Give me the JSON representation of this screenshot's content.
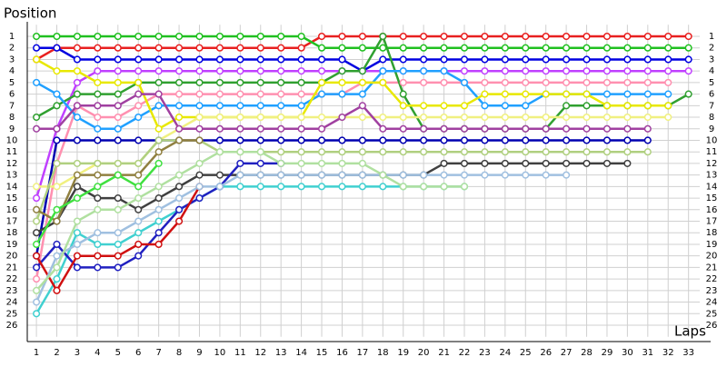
{
  "chart_data": {
    "type": "line",
    "y_label": "Position",
    "x_label": "Laps",
    "x": [
      1,
      2,
      3,
      4,
      5,
      6,
      7,
      8,
      9,
      10,
      11,
      12,
      13,
      14,
      15,
      16,
      17,
      18,
      19,
      20,
      21,
      22,
      23,
      24,
      25,
      26,
      27,
      28,
      29,
      30,
      31,
      32,
      33
    ],
    "xlim": [
      0.55,
      33.55
    ],
    "xticks": [
      1,
      2,
      3,
      4,
      5,
      6,
      7,
      8,
      9,
      10,
      11,
      12,
      13,
      14,
      15,
      16,
      17,
      18,
      19,
      20,
      21,
      22,
      23,
      24,
      25,
      26,
      27,
      28,
      29,
      30,
      31,
      32,
      33
    ],
    "ylim": [
      27,
      0
    ],
    "yticks": [
      1,
      2,
      3,
      4,
      5,
      6,
      7,
      8,
      9,
      10,
      11,
      12,
      13,
      14,
      15,
      16,
      17,
      18,
      19,
      20,
      21,
      22,
      23,
      24,
      25,
      26
    ],
    "grid": true,
    "series": [
      {
        "color": "#e82020",
        "values": [
          3,
          2,
          2,
          2,
          2,
          2,
          2,
          2,
          2,
          2,
          2,
          2,
          2,
          2,
          1,
          1,
          1,
          1,
          1,
          1,
          1,
          1,
          1,
          1,
          1,
          1,
          1,
          1,
          1,
          1,
          1,
          1,
          1
        ]
      },
      {
        "color": "#20c020",
        "values": [
          1,
          1,
          1,
          1,
          1,
          1,
          1,
          1,
          1,
          1,
          1,
          1,
          1,
          1,
          2,
          2,
          2,
          2,
          2,
          2,
          2,
          2,
          2,
          2,
          2,
          2,
          2,
          2,
          2,
          2,
          2,
          2,
          2
        ]
      },
      {
        "color": "#0000e0",
        "values": [
          2,
          2,
          3,
          3,
          3,
          3,
          3,
          3,
          3,
          3,
          3,
          3,
          3,
          3,
          3,
          3,
          4,
          3,
          3,
          3,
          3,
          3,
          3,
          3,
          3,
          3,
          3,
          3,
          3,
          3,
          3,
          3,
          3
        ]
      },
      {
        "color": "#c040ff",
        "values": [
          15,
          9,
          5,
          4,
          4,
          4,
          4,
          4,
          4,
          4,
          4,
          4,
          4,
          4,
          4,
          4,
          4,
          4,
          4,
          4,
          4,
          4,
          4,
          4,
          4,
          4,
          4,
          4,
          4,
          4,
          4,
          4,
          4
        ]
      },
      {
        "color": "#ff90b0",
        "values": [
          22,
          12,
          7,
          8,
          8,
          7,
          6,
          6,
          6,
          6,
          6,
          6,
          6,
          6,
          6,
          6,
          5,
          5,
          5,
          5,
          5,
          5,
          5,
          5,
          5,
          5,
          5,
          5,
          5,
          5,
          5,
          5,
          null
        ]
      },
      {
        "color": "#30a030",
        "values": [
          8,
          7,
          6,
          6,
          6,
          5,
          5,
          5,
          5,
          5,
          5,
          5,
          5,
          5,
          5,
          4,
          4,
          1,
          6,
          9,
          9,
          9,
          9,
          9,
          9,
          9,
          7,
          7,
          7,
          7,
          7,
          7,
          6
        ]
      },
      {
        "color": "#20a0ff",
        "values": [
          5,
          6,
          8,
          9,
          9,
          8,
          7,
          7,
          7,
          7,
          7,
          7,
          7,
          7,
          6,
          6,
          6,
          4,
          4,
          4,
          4,
          5,
          7,
          7,
          7,
          6,
          6,
          6,
          6,
          6,
          6,
          6,
          null
        ]
      },
      {
        "color": "#e8e800",
        "values": [
          3,
          4,
          4,
          5,
          5,
          5,
          9,
          8,
          8,
          8,
          8,
          8,
          8,
          8,
          5,
          5,
          5,
          5,
          7,
          7,
          7,
          7,
          6,
          6,
          6,
          6,
          6,
          6,
          7,
          7,
          7,
          7,
          null
        ]
      },
      {
        "color": "#f0f080",
        "values": [
          14,
          14,
          13,
          12,
          12,
          12,
          10,
          9,
          8,
          8,
          8,
          8,
          8,
          8,
          8,
          8,
          8,
          8,
          8,
          8,
          8,
          8,
          8,
          8,
          8,
          8,
          8,
          8,
          8,
          8,
          8,
          8,
          null
        ]
      },
      {
        "color": "#a040a0",
        "values": [
          9,
          9,
          7,
          7,
          7,
          6,
          6,
          9,
          9,
          9,
          9,
          9,
          9,
          9,
          9,
          8,
          7,
          9,
          9,
          9,
          9,
          9,
          9,
          9,
          9,
          9,
          9,
          9,
          9,
          9,
          9,
          null,
          null
        ]
      },
      {
        "color": "#0000b0",
        "values": [
          20,
          10,
          10,
          10,
          10,
          10,
          10,
          10,
          10,
          10,
          10,
          10,
          10,
          10,
          10,
          10,
          10,
          10,
          10,
          10,
          10,
          10,
          10,
          10,
          10,
          10,
          10,
          10,
          10,
          10,
          10,
          null,
          null
        ]
      },
      {
        "color": "#b0d080",
        "values": [
          17,
          12,
          12,
          12,
          12,
          12,
          10,
          10,
          10,
          11,
          11,
          11,
          11,
          11,
          11,
          11,
          11,
          11,
          11,
          11,
          11,
          11,
          11,
          11,
          11,
          11,
          11,
          11,
          11,
          11,
          11,
          null,
          null
        ]
      },
      {
        "color": "#404040",
        "values": [
          18,
          17,
          14,
          15,
          15,
          16,
          15,
          14,
          13,
          13,
          13,
          13,
          13,
          13,
          13,
          13,
          13,
          13,
          13,
          13,
          12,
          12,
          12,
          12,
          12,
          12,
          12,
          12,
          12,
          12,
          null,
          null,
          null
        ]
      },
      {
        "color": "#908040",
        "values": [
          16,
          17,
          13,
          13,
          13,
          13,
          11,
          10,
          10,
          null,
          null,
          null,
          null,
          null,
          null,
          null,
          null,
          null,
          null,
          null,
          null,
          null,
          null,
          null,
          null,
          null,
          null,
          null,
          null,
          null,
          null,
          null,
          null
        ]
      },
      {
        "color": "#40e040",
        "values": [
          19,
          16,
          15,
          14,
          13,
          14,
          12,
          null,
          null,
          null,
          null,
          null,
          null,
          null,
          null,
          null,
          null,
          null,
          null,
          null,
          null,
          null,
          null,
          null,
          null,
          null,
          null,
          null,
          null,
          null,
          null,
          null,
          null
        ]
      },
      {
        "color": "#40d0d0",
        "values": [
          25,
          22,
          18,
          19,
          19,
          18,
          17,
          16,
          15,
          14,
          14,
          14,
          14,
          14,
          14,
          14,
          14,
          14,
          14,
          14,
          14,
          14,
          null,
          null,
          null,
          null,
          null,
          null,
          null,
          null,
          null,
          null,
          null
        ]
      },
      {
        "color": "#2020c0",
        "values": [
          21,
          19,
          21,
          21,
          21,
          20,
          18,
          16,
          15,
          14,
          12,
          12,
          12,
          null,
          null,
          null,
          null,
          null,
          null,
          null,
          null,
          null,
          null,
          null,
          null,
          null,
          null,
          null,
          null,
          null,
          null,
          null,
          null
        ]
      },
      {
        "color": "#d01010",
        "values": [
          20,
          23,
          20,
          20,
          20,
          19,
          19,
          17,
          14,
          null,
          null,
          null,
          null,
          null,
          null,
          null,
          null,
          null,
          null,
          null,
          null,
          null,
          null,
          null,
          null,
          null,
          null,
          null,
          null,
          null,
          null,
          null,
          null
        ]
      },
      {
        "color": "#a0c0e0",
        "values": [
          24,
          20,
          19,
          18,
          18,
          17,
          16,
          15,
          14,
          14,
          13,
          13,
          13,
          13,
          13,
          13,
          13,
          13,
          13,
          13,
          13,
          13,
          13,
          13,
          13,
          13,
          13,
          null,
          null,
          null,
          null,
          null,
          null
        ]
      },
      {
        "color": "#b0e0a0",
        "values": [
          23,
          21,
          17,
          16,
          16,
          15,
          14,
          13,
          12,
          11,
          11,
          11,
          12,
          12,
          12,
          12,
          12,
          13,
          14,
          14,
          14,
          14,
          null,
          null,
          null,
          null,
          null,
          null,
          null,
          null,
          null,
          null,
          null
        ]
      }
    ]
  }
}
